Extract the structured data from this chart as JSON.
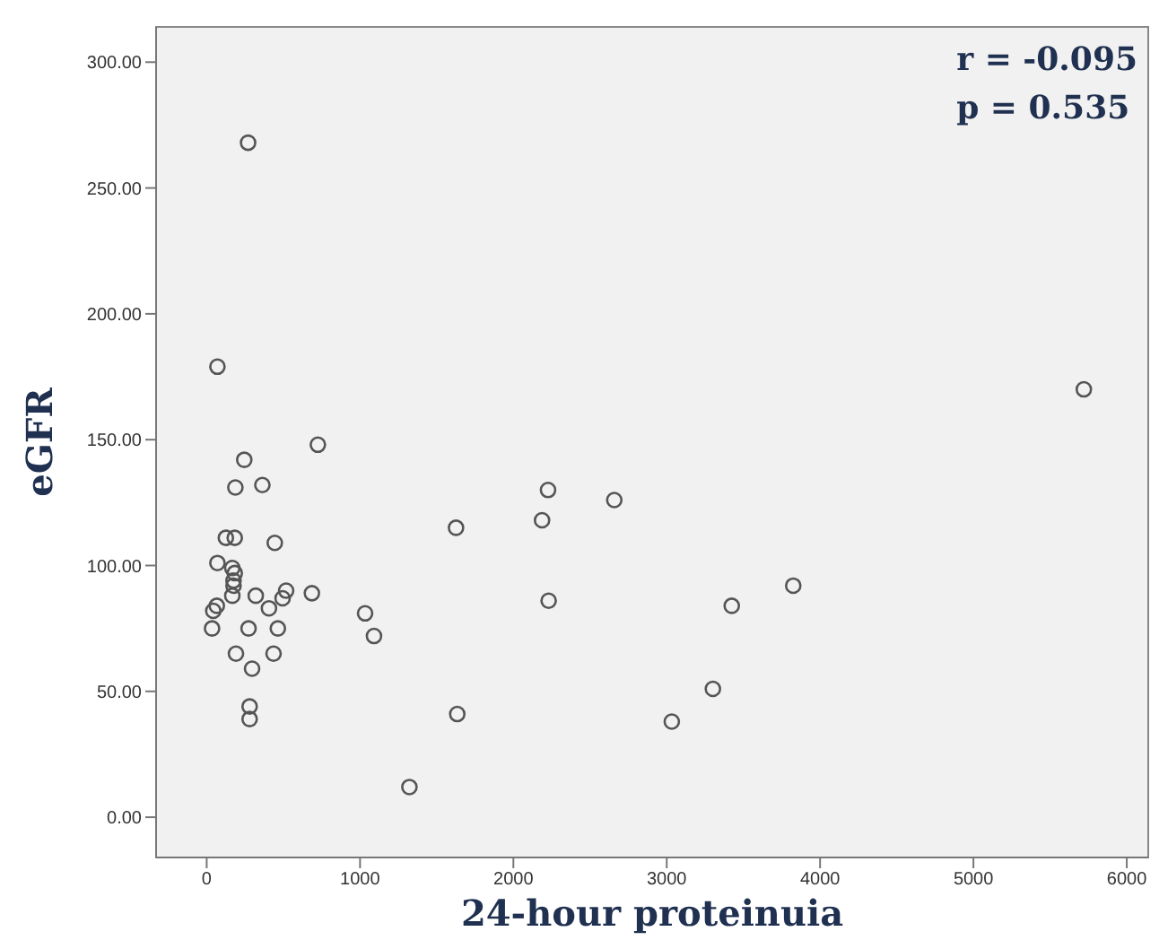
{
  "chart_data": {
    "type": "scatter",
    "xlabel": "24-hour proteinuia",
    "ylabel": "eGFR",
    "annotations": [
      "r = -0.095",
      "p = 0.535"
    ],
    "x": [
      270,
      70,
      245,
      725,
      187,
      363,
      125,
      183,
      444,
      70,
      167,
      183,
      175,
      175,
      167,
      320,
      518,
      495,
      686,
      406,
      66,
      43,
      35,
      273,
      464,
      191,
      436,
      296,
      280,
      280,
      1033,
      1091,
      1626,
      2226,
      2187,
      2658,
      2230,
      3825,
      3424,
      3301,
      3033,
      1634,
      1322,
      5720
    ],
    "series": [
      {
        "color": "#555555",
        "values": [
          268,
          179,
          142,
          148,
          131,
          132,
          111,
          111,
          109,
          101,
          99,
          97,
          94,
          92,
          88,
          88,
          90,
          87,
          89,
          83,
          84,
          82,
          75,
          75,
          75,
          65,
          65,
          59,
          44,
          39,
          81,
          72,
          115,
          130,
          118,
          126,
          86,
          92,
          84,
          51,
          38,
          41,
          12,
          170
        ]
      }
    ],
    "xlim": [
      -330,
      6140
    ],
    "ylim": [
      -16,
      314
    ],
    "xticks": [
      0,
      1000,
      2000,
      3000,
      4000,
      5000,
      6000
    ],
    "yticks": [
      {
        "value": 0,
        "label": "0.00"
      },
      {
        "value": 50,
        "label": "50.00"
      },
      {
        "value": 100,
        "label": "100.00"
      },
      {
        "value": 150,
        "label": "150.00"
      },
      {
        "value": 200,
        "label": "200.00"
      },
      {
        "value": 250,
        "label": "250.00"
      },
      {
        "value": 300,
        "label": "300.00"
      }
    ],
    "grid": false,
    "legend": false,
    "marker": "circle"
  }
}
